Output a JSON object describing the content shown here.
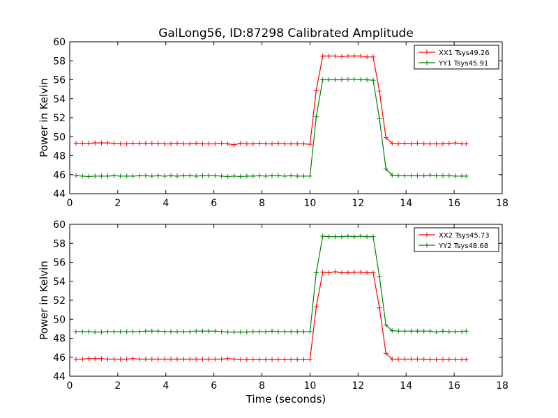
{
  "chart_data": {
    "type": "line",
    "title": "GalLong56, ID:87298 Calibrated Amplitude",
    "xlabel": "Time (seconds)",
    "colors": {
      "red": "#ff0000",
      "green": "#008000"
    },
    "x": [
      0.26,
      0.53,
      0.79,
      1.05,
      1.32,
      1.58,
      1.84,
      2.11,
      2.37,
      2.63,
      2.9,
      3.16,
      3.42,
      3.68,
      3.95,
      4.21,
      4.47,
      4.74,
      5.0,
      5.26,
      5.53,
      5.79,
      6.05,
      6.32,
      6.58,
      6.84,
      7.11,
      7.37,
      7.63,
      7.89,
      8.16,
      8.42,
      8.68,
      8.95,
      9.21,
      9.47,
      9.74,
      10.0,
      10.26,
      10.53,
      10.79,
      11.05,
      11.32,
      11.58,
      11.84,
      12.11,
      12.37,
      12.63,
      12.89,
      13.16,
      13.42,
      13.68,
      13.95,
      14.21,
      14.47,
      14.74,
      15.0,
      15.26,
      15.53,
      15.79,
      16.05,
      16.32,
      16.5
    ],
    "panels": [
      {
        "ylabel": "Power in Kelvin",
        "xlim": [
          0,
          18
        ],
        "ylim": [
          44,
          60
        ],
        "xticks": [
          0,
          2,
          4,
          6,
          8,
          10,
          12,
          14,
          16,
          18
        ],
        "yticks": [
          44,
          46,
          48,
          50,
          52,
          54,
          56,
          58,
          60
        ],
        "legend_loc": "top-right",
        "series": [
          {
            "name": "XX1 Tsys49.26",
            "color": "#ff0000",
            "values": [
              49.3,
              49.3,
              49.3,
              49.35,
              49.35,
              49.35,
              49.3,
              49.25,
              49.25,
              49.3,
              49.3,
              49.3,
              49.3,
              49.3,
              49.25,
              49.25,
              49.3,
              49.25,
              49.25,
              49.3,
              49.25,
              49.25,
              49.25,
              49.3,
              49.25,
              49.15,
              49.3,
              49.25,
              49.25,
              49.3,
              49.25,
              49.25,
              49.3,
              49.25,
              49.25,
              49.25,
              49.25,
              49.2,
              54.9,
              58.5,
              58.5,
              58.5,
              58.45,
              58.5,
              58.5,
              58.5,
              58.4,
              58.4,
              54.8,
              49.9,
              49.3,
              49.25,
              49.3,
              49.25,
              49.3,
              49.25,
              49.25,
              49.25,
              49.25,
              49.3,
              49.35,
              49.25,
              49.25
            ]
          },
          {
            "name": "YY1 Tsys45.91",
            "color": "#008000",
            "values": [
              45.9,
              45.85,
              45.8,
              45.85,
              45.85,
              45.85,
              45.9,
              45.85,
              45.85,
              45.85,
              45.9,
              45.9,
              45.85,
              45.9,
              45.85,
              45.9,
              45.85,
              45.9,
              45.9,
              45.85,
              45.9,
              45.9,
              45.9,
              45.85,
              45.8,
              45.85,
              45.8,
              45.85,
              45.85,
              45.9,
              45.85,
              45.9,
              45.9,
              45.85,
              45.9,
              45.85,
              45.85,
              45.85,
              52.1,
              56.0,
              56.0,
              56.0,
              56.0,
              56.05,
              56.05,
              56.0,
              56.0,
              55.95,
              51.9,
              46.6,
              45.95,
              45.9,
              45.9,
              45.9,
              45.9,
              45.9,
              45.95,
              45.9,
              45.9,
              45.9,
              45.85,
              45.85,
              45.85
            ]
          }
        ]
      },
      {
        "ylabel": "Power in Kelvin",
        "xlim": [
          0,
          18
        ],
        "ylim": [
          44,
          60
        ],
        "xticks": [
          0,
          2,
          4,
          6,
          8,
          10,
          12,
          14,
          16,
          18
        ],
        "yticks": [
          44,
          46,
          48,
          50,
          52,
          54,
          56,
          58,
          60
        ],
        "legend_loc": "top-right",
        "series": [
          {
            "name": "XX2 Tsys45.73",
            "color": "#ff0000",
            "values": [
              45.8,
              45.8,
              45.85,
              45.85,
              45.85,
              45.8,
              45.8,
              45.8,
              45.8,
              45.85,
              45.8,
              45.8,
              45.8,
              45.8,
              45.8,
              45.8,
              45.8,
              45.8,
              45.8,
              45.8,
              45.8,
              45.8,
              45.8,
              45.8,
              45.85,
              45.8,
              45.75,
              45.75,
              45.75,
              45.75,
              45.75,
              45.75,
              45.75,
              45.75,
              45.75,
              45.75,
              45.75,
              45.75,
              51.3,
              54.95,
              54.9,
              55.0,
              54.9,
              54.9,
              54.95,
              54.95,
              54.9,
              54.9,
              51.2,
              46.4,
              45.8,
              45.8,
              45.8,
              45.8,
              45.8,
              45.8,
              45.75,
              45.75,
              45.75,
              45.75,
              45.75,
              45.75,
              45.75
            ]
          },
          {
            "name": "YY2 Tsys48.68",
            "color": "#008000",
            "values": [
              48.7,
              48.7,
              48.7,
              48.65,
              48.65,
              48.7,
              48.7,
              48.7,
              48.7,
              48.7,
              48.7,
              48.75,
              48.75,
              48.75,
              48.7,
              48.7,
              48.7,
              48.7,
              48.7,
              48.75,
              48.75,
              48.75,
              48.75,
              48.7,
              48.65,
              48.65,
              48.65,
              48.65,
              48.7,
              48.7,
              48.7,
              48.75,
              48.7,
              48.7,
              48.7,
              48.7,
              48.7,
              48.7,
              54.9,
              58.75,
              58.7,
              58.7,
              58.7,
              58.75,
              58.7,
              58.75,
              58.7,
              58.7,
              54.5,
              49.4,
              48.8,
              48.75,
              48.75,
              48.75,
              48.75,
              48.75,
              48.75,
              48.65,
              48.75,
              48.7,
              48.7,
              48.7,
              48.75
            ]
          }
        ]
      }
    ]
  }
}
